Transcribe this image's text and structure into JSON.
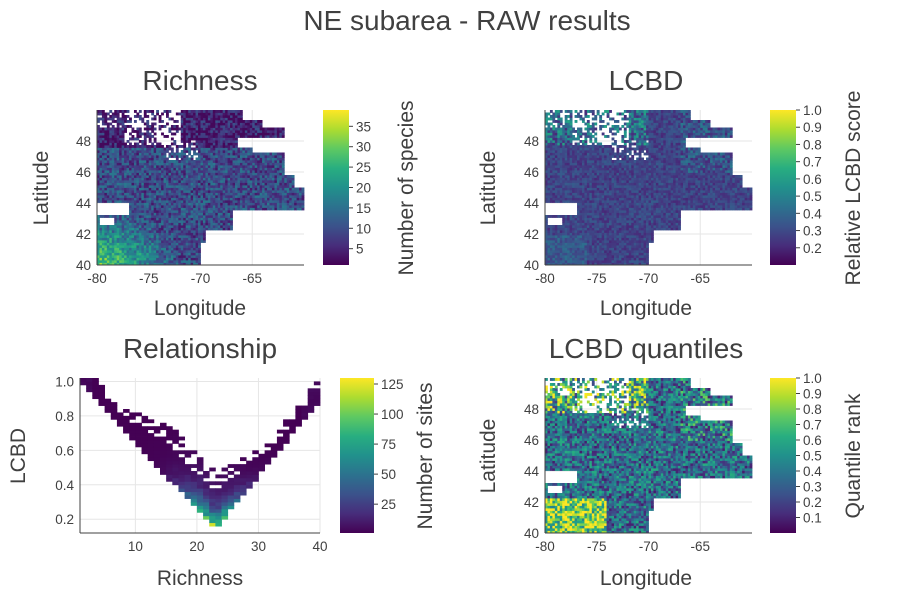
{
  "chart_data": {
    "suptitle": "NE subarea - RAW results",
    "panels": [
      {
        "id": "richness",
        "type": "heatmap",
        "title": "Richness",
        "xlabel": "Longitude",
        "ylabel": "Latitude",
        "xlim": [
          -80,
          -60
        ],
        "ylim": [
          40,
          50
        ],
        "xticks": [
          "-80",
          "-75",
          "-70",
          "-65"
        ],
        "xtick_values": [
          -80,
          -75,
          -70,
          -65
        ],
        "yticks": [
          "40",
          "42",
          "44",
          "46",
          "48"
        ],
        "ytick_values": [
          40,
          42,
          44,
          46,
          48
        ],
        "colorbar": {
          "label": "Number of species",
          "min": 1,
          "max": 39,
          "ticks": [
            "5",
            "10",
            "15",
            "20",
            "25",
            "30",
            "35"
          ],
          "tick_values": [
            5,
            10,
            15,
            20,
            25,
            30,
            35
          ]
        },
        "colormap": "viridis",
        "pattern": "richness"
      },
      {
        "id": "lcbd",
        "type": "heatmap",
        "title": "LCBD",
        "xlabel": "Longitude",
        "ylabel": "Latitude",
        "xlim": [
          -80,
          -60
        ],
        "ylim": [
          40,
          50
        ],
        "xticks": [
          "-80",
          "-75",
          "-70",
          "-65"
        ],
        "xtick_values": [
          -80,
          -75,
          -70,
          -65
        ],
        "yticks": [
          "40",
          "42",
          "44",
          "46",
          "48"
        ],
        "ytick_values": [
          40,
          42,
          44,
          46,
          48
        ],
        "colorbar": {
          "label": "Relative LCBD score",
          "min": 0.1,
          "max": 1.0,
          "ticks": [
            "0.2",
            "0.3",
            "0.4",
            "0.5",
            "0.6",
            "0.7",
            "0.8",
            "0.9",
            "1.0"
          ],
          "tick_values": [
            0.2,
            0.3,
            0.4,
            0.5,
            0.6,
            0.7,
            0.8,
            0.9,
            1.0
          ]
        },
        "colormap": "viridis",
        "pattern": "lcbd"
      },
      {
        "id": "relationship",
        "type": "heatmap",
        "title": "Relationship",
        "xlabel": "Richness",
        "ylabel": "LCBD",
        "xlim": [
          1,
          40
        ],
        "ylim": [
          0.12,
          1.02
        ],
        "xticks": [
          "10",
          "20",
          "30",
          "40"
        ],
        "xtick_values": [
          10,
          20,
          30,
          40
        ],
        "yticks": [
          "0.2",
          "0.4",
          "0.6",
          "0.8",
          "1.0"
        ],
        "ytick_values": [
          0.2,
          0.4,
          0.6,
          0.8,
          1.0
        ],
        "colorbar": {
          "label": "Number of sites",
          "min": 1,
          "max": 130,
          "ticks": [
            "25",
            "50",
            "75",
            "100",
            "125"
          ],
          "tick_values": [
            25,
            50,
            75,
            100,
            125
          ]
        },
        "colormap": "viridis",
        "shape": "v-shaped band: LCBD high (~1.0) at low richness, minimum (~0.15) near richness 23, rising again to ~0.9 at richness 40; densest near richness 20-25"
      },
      {
        "id": "lcbd-quantiles",
        "type": "heatmap",
        "title": "LCBD quantiles",
        "xlabel": "Longitude",
        "ylabel": "Latitude",
        "xlim": [
          -80,
          -60
        ],
        "ylim": [
          40,
          50
        ],
        "xticks": [
          "-80",
          "-75",
          "-70",
          "-65"
        ],
        "xtick_values": [
          -80,
          -75,
          -70,
          -65
        ],
        "yticks": [
          "40",
          "42",
          "44",
          "46",
          "48"
        ],
        "ytick_values": [
          40,
          42,
          44,
          46,
          48
        ],
        "colorbar": {
          "label": "Quantile rank",
          "min": 0.0,
          "max": 1.0,
          "ticks": [
            "0.1",
            "0.2",
            "0.3",
            "0.4",
            "0.5",
            "0.6",
            "0.7",
            "0.8",
            "0.9",
            "1.0"
          ],
          "tick_values": [
            0.1,
            0.2,
            0.3,
            0.4,
            0.5,
            0.6,
            0.7,
            0.8,
            0.9,
            1.0
          ]
        },
        "colormap": "viridis",
        "pattern": "quantiles"
      }
    ]
  }
}
